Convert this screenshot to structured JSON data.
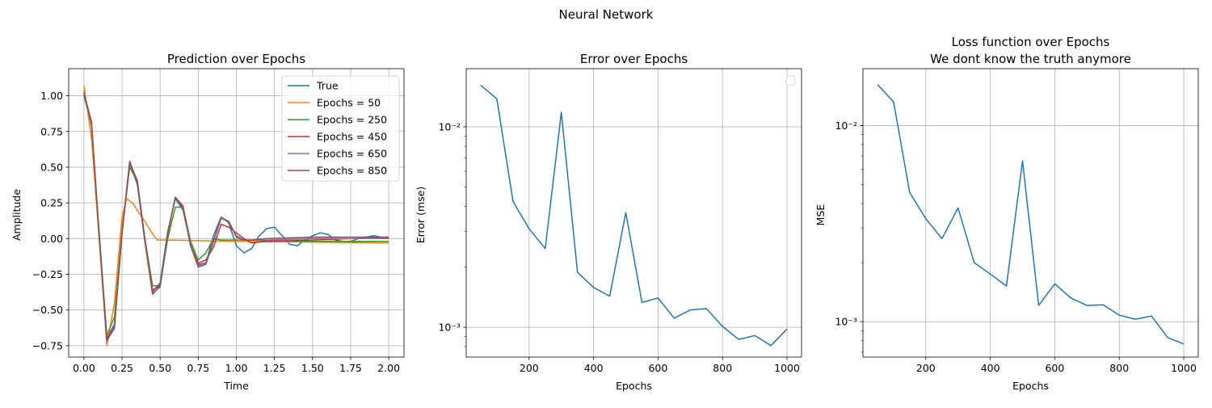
{
  "figure": {
    "suptitle": "Neural Network",
    "colors": {
      "blue": "#1f77b4",
      "orange": "#ff7f0e",
      "green": "#2ca02c",
      "red": "#d62728",
      "purple": "#9467bd",
      "brown": "#8c564b"
    }
  },
  "chart_data": [
    {
      "type": "line",
      "title": "Prediction over Epochs",
      "xlabel": "Time",
      "ylabel": "Amplitude",
      "xlim": [
        -0.1,
        2.1
      ],
      "ylim": [
        -0.83,
        1.19
      ],
      "xticks": [
        0,
        0.25,
        0.5,
        0.75,
        1.0,
        1.25,
        1.5,
        1.75,
        2.0
      ],
      "xtick_labels": [
        "0.00",
        "0.25",
        "0.50",
        "0.75",
        "1.00",
        "1.25",
        "1.50",
        "1.75",
        "2.00"
      ],
      "yticks": [
        -0.75,
        -0.5,
        -0.25,
        0,
        0.25,
        0.5,
        0.75,
        1.0
      ],
      "ytick_labels": [
        "−0.75",
        "−0.50",
        "−0.25",
        "0.00",
        "0.25",
        "0.50",
        "0.75",
        "1.00"
      ],
      "grid": true,
      "legend": "top-right",
      "series": [
        {
          "name": "True",
          "color": "#1f77b4",
          "x": [
            0,
            0.05,
            0.1,
            0.15,
            0.2,
            0.25,
            0.3,
            0.35,
            0.4,
            0.45,
            0.5,
            0.55,
            0.6,
            0.65,
            0.7,
            0.75,
            0.8,
            0.85,
            0.9,
            0.95,
            1.0,
            1.05,
            1.1,
            1.15,
            1.2,
            1.25,
            1.3,
            1.35,
            1.4,
            1.45,
            1.5,
            1.55,
            1.6,
            1.65,
            1.7,
            1.75,
            1.8,
            1.85,
            1.9,
            1.95,
            2.0
          ],
          "y": [
            1.0,
            0.8,
            0.01,
            -0.7,
            -0.6,
            0.05,
            0.53,
            0.38,
            -0.02,
            -0.37,
            -0.31,
            0.05,
            0.28,
            0.2,
            -0.04,
            -0.18,
            -0.17,
            0.02,
            0.15,
            0.11,
            -0.05,
            -0.1,
            -0.07,
            0.02,
            0.07,
            0.08,
            0.02,
            -0.04,
            -0.05,
            -0.01,
            0.02,
            0.04,
            0.03,
            -0.01,
            -0.02,
            -0.02,
            0.0,
            0.01,
            0.02,
            0.01,
            0.0
          ]
        },
        {
          "name": "Epochs = 50",
          "color": "#ff7f0e",
          "x": [
            0,
            0.05,
            0.1,
            0.15,
            0.2,
            0.25,
            0.28,
            0.32,
            0.36,
            0.4,
            0.44,
            0.48,
            0.55,
            0.8,
            1.0,
            1.5,
            2.0
          ],
          "y": [
            1.07,
            0.7,
            0.0,
            -0.75,
            -0.45,
            0.15,
            0.28,
            0.25,
            0.18,
            0.12,
            0.05,
            -0.01,
            -0.01,
            -0.015,
            -0.02,
            -0.025,
            -0.03
          ]
        },
        {
          "name": "Epochs = 250",
          "color": "#2ca02c",
          "x": [
            0,
            0.05,
            0.1,
            0.15,
            0.2,
            0.25,
            0.3,
            0.35,
            0.4,
            0.45,
            0.5,
            0.55,
            0.6,
            0.65,
            0.7,
            0.75,
            0.8,
            0.85,
            0.9,
            0.95,
            1.0,
            1.1,
            1.2,
            1.5,
            2.0
          ],
          "y": [
            1.03,
            0.79,
            0.05,
            -0.68,
            -0.55,
            0.05,
            0.5,
            0.4,
            0.0,
            -0.33,
            -0.33,
            0.0,
            0.22,
            0.22,
            -0.02,
            -0.15,
            -0.1,
            0.0,
            -0.01,
            -0.01,
            -0.01,
            -0.01,
            -0.015,
            -0.02,
            -0.02
          ]
        },
        {
          "name": "Epochs = 450",
          "color": "#d62728",
          "x": [
            0,
            0.05,
            0.1,
            0.15,
            0.2,
            0.25,
            0.3,
            0.35,
            0.4,
            0.45,
            0.5,
            0.55,
            0.6,
            0.65,
            0.7,
            0.75,
            0.8,
            0.85,
            0.9,
            0.95,
            1.0,
            1.05,
            1.1,
            1.2,
            1.5,
            2.0
          ],
          "y": [
            1.02,
            0.8,
            0.02,
            -0.7,
            -0.62,
            0.03,
            0.53,
            0.41,
            0.0,
            -0.36,
            -0.33,
            0.03,
            0.29,
            0.23,
            -0.05,
            -0.17,
            -0.15,
            -0.06,
            0.1,
            0.08,
            0.04,
            0.0,
            -0.03,
            -0.02,
            -0.01,
            0.01
          ]
        },
        {
          "name": "Epochs = 650",
          "color": "#9467bd",
          "x": [
            0,
            0.05,
            0.1,
            0.15,
            0.2,
            0.25,
            0.3,
            0.35,
            0.4,
            0.45,
            0.5,
            0.55,
            0.6,
            0.65,
            0.7,
            0.75,
            0.8,
            0.85,
            0.9,
            0.95,
            1.0,
            1.05,
            1.1,
            1.2,
            1.5,
            2.0
          ],
          "y": [
            1.02,
            0.82,
            0.02,
            -0.72,
            -0.62,
            0.04,
            0.54,
            0.4,
            -0.01,
            -0.38,
            -0.34,
            0.04,
            0.29,
            0.22,
            -0.05,
            -0.19,
            -0.17,
            -0.02,
            0.14,
            0.12,
            0.02,
            -0.01,
            -0.01,
            -0.01,
            0.0,
            0.0
          ]
        },
        {
          "name": "Epochs = 850",
          "color": "#8c564b",
          "x": [
            0,
            0.05,
            0.1,
            0.15,
            0.2,
            0.25,
            0.3,
            0.35,
            0.4,
            0.45,
            0.5,
            0.55,
            0.6,
            0.65,
            0.7,
            0.75,
            0.8,
            0.85,
            0.9,
            0.95,
            1.0,
            1.05,
            1.1,
            1.2,
            1.5,
            2.0
          ],
          "y": [
            1.01,
            0.81,
            0.02,
            -0.71,
            -0.63,
            0.04,
            0.54,
            0.39,
            -0.02,
            -0.39,
            -0.33,
            0.04,
            0.29,
            0.21,
            -0.05,
            -0.2,
            -0.18,
            -0.02,
            0.15,
            0.12,
            0.01,
            -0.01,
            -0.01,
            0.0,
            0.01,
            0.01
          ]
        }
      ]
    },
    {
      "type": "line",
      "title": "Error over Epochs",
      "xlabel": "Epochs",
      "ylabel": "Error (mse)",
      "yscale": "log",
      "xlim": [
        5,
        1045
      ],
      "ylim": [
        0.00071,
        0.0195
      ],
      "xticks": [
        200,
        400,
        600,
        800,
        1000
      ],
      "xtick_labels": [
        "200",
        "400",
        "600",
        "800",
        "1000"
      ],
      "yticks": [
        0.001,
        0.01
      ],
      "ytick_labels": [
        "10⁻³",
        "10⁻²"
      ],
      "grid": true,
      "legend": "top-right (empty)",
      "series": [
        {
          "color": "#1f77b4",
          "x": [
            50,
            100,
            150,
            200,
            250,
            300,
            350,
            400,
            450,
            500,
            550,
            600,
            650,
            700,
            750,
            800,
            850,
            900,
            950,
            1000
          ],
          "y": [
            0.0161,
            0.0138,
            0.00425,
            0.0031,
            0.00247,
            0.0118,
            0.00188,
            0.00158,
            0.00143,
            0.00373,
            0.00133,
            0.0014,
            0.00111,
            0.00122,
            0.00124,
            0.00101,
            0.00087,
            0.00091,
            0.00081,
            0.00098
          ]
        }
      ]
    },
    {
      "type": "line",
      "title": "Loss function over Epochs",
      "subtitle": "We dont know the truth anymore",
      "xlabel": "Epochs",
      "ylabel": "MSE",
      "yscale": "log",
      "xlim": [
        5,
        1045
      ],
      "ylim": [
        0.00066,
        0.0195
      ],
      "xticks": [
        200,
        400,
        600,
        800,
        1000
      ],
      "xtick_labels": [
        "200",
        "400",
        "600",
        "800",
        "1000"
      ],
      "yticks": [
        0.001,
        0.01
      ],
      "ytick_labels": [
        "10⁻³",
        "10⁻²"
      ],
      "grid": true,
      "series": [
        {
          "color": "#1f77b4",
          "x": [
            50,
            100,
            150,
            200,
            250,
            300,
            350,
            400,
            450,
            500,
            550,
            600,
            650,
            700,
            750,
            800,
            850,
            900,
            950,
            1000
          ],
          "y": [
            0.0162,
            0.0132,
            0.00455,
            0.00335,
            0.00265,
            0.0038,
            0.002,
            0.00175,
            0.00152,
            0.0066,
            0.00121,
            0.00156,
            0.00132,
            0.00121,
            0.00122,
            0.00108,
            0.00103,
            0.00107,
            0.00083,
            0.00077
          ]
        }
      ]
    }
  ]
}
